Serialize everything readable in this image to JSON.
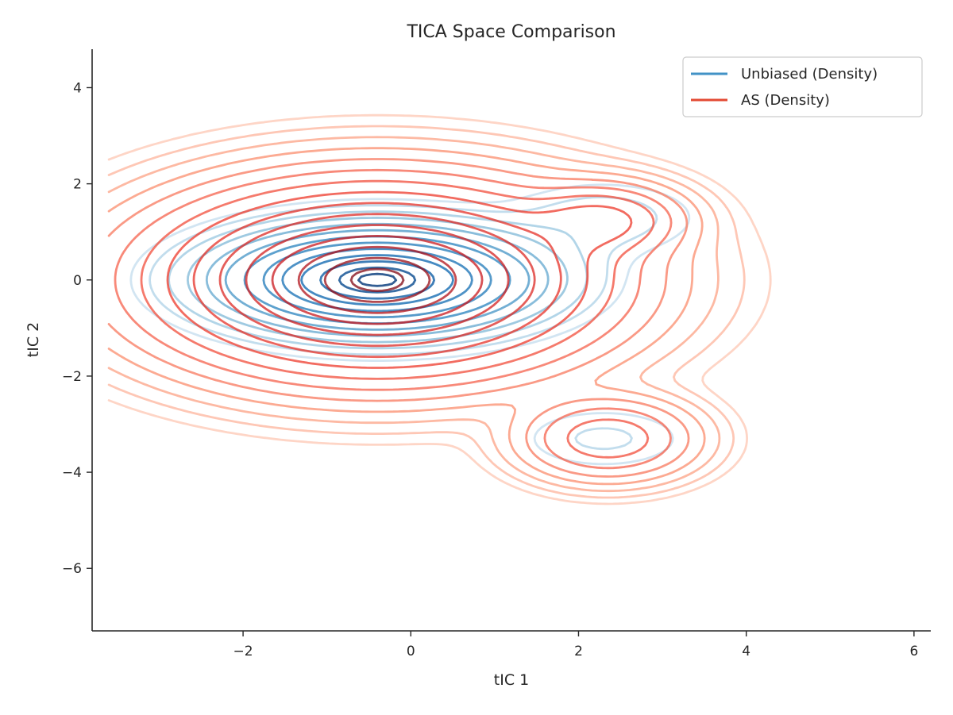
{
  "chart_data": {
    "type": "contour",
    "title": "TICA Space Comparison",
    "xlabel": "tIC 1",
    "ylabel": "tIC 2",
    "xlim": [
      -3.8,
      6.2
    ],
    "ylim": [
      -7.3,
      4.8
    ],
    "xticks": [
      -2,
      0,
      2,
      4,
      6
    ],
    "yticks": [
      -6,
      -4,
      -2,
      0,
      2,
      4
    ],
    "xtick_labels": [
      "−2",
      "0",
      "2",
      "4",
      "6"
    ],
    "ytick_labels": [
      "−6",
      "−4",
      "−2",
      "0",
      "2",
      "4"
    ],
    "grid": false,
    "legend": {
      "position": "top-right",
      "entries": [
        "Unbiased (Density)",
        "AS (Density)"
      ]
    },
    "series": [
      {
        "name": "Unbiased (Density)",
        "colormap": "Blues",
        "legend_color": "#4292c6",
        "modes": [
          {
            "center": [
              -0.4,
              0.0
            ],
            "sx": 1.05,
            "sy": 0.6,
            "weight": 1.0
          },
          {
            "center": [
              2.3,
              1.3
            ],
            "sx": 0.75,
            "sy": 0.5,
            "weight": 0.05
          },
          {
            "center": [
              2.3,
              -3.3
            ],
            "sx": 0.7,
            "sy": 0.45,
            "weight": 0.04
          }
        ]
      },
      {
        "name": "AS (Density)",
        "colormap": "Reds",
        "legend_color": "#e34a33",
        "modes": [
          {
            "center": [
              -0.4,
              0.0
            ],
            "sx": 1.3,
            "sy": 0.95,
            "weight": 1.0
          },
          {
            "center": [
              2.3,
              1.25
            ],
            "sx": 0.5,
            "sy": 0.4,
            "weight": 0.16
          },
          {
            "center": [
              2.35,
              -3.3
            ],
            "sx": 0.55,
            "sy": 0.45,
            "weight": 0.14
          }
        ]
      }
    ]
  }
}
